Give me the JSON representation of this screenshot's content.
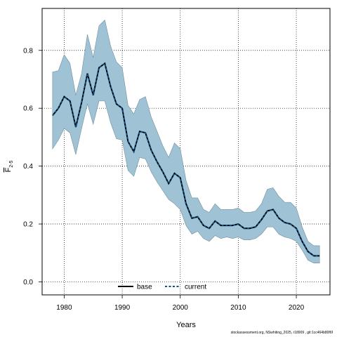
{
  "chart_data": {
    "type": "line",
    "xlabel": "Years",
    "ylabel": "F",
    "ylabel_subscript": "2-5",
    "xlim": [
      1976.2,
      2025.8
    ],
    "ylim": [
      -0.045,
      0.945
    ],
    "x_ticks": [
      1980,
      1990,
      2000,
      2010,
      2020
    ],
    "x_tick_labels": [
      "1980",
      "1990",
      "2000",
      "2010",
      "2020"
    ],
    "y_ticks": [
      0.0,
      0.2,
      0.4,
      0.6,
      0.8
    ],
    "y_tick_labels": [
      "0.0",
      "0.2",
      "0.4",
      "0.6",
      "0.8"
    ],
    "grid": true,
    "legend_position": "bottom",
    "x": [
      1978,
      1979,
      1980,
      1981,
      1982,
      1983,
      1984,
      1985,
      1986,
      1987,
      1988,
      1989,
      1990,
      1991,
      1992,
      1993,
      1994,
      1995,
      1996,
      1997,
      1998,
      1999,
      2000,
      2001,
      2002,
      2003,
      2004,
      2005,
      2006,
      2007,
      2008,
      2009,
      2010,
      2011,
      2012,
      2013,
      2014,
      2015,
      2016,
      2017,
      2018,
      2019,
      2020,
      2021,
      2022,
      2023,
      2024
    ],
    "band": {
      "upper": [
        0.725,
        0.73,
        0.785,
        0.755,
        0.645,
        0.72,
        0.855,
        0.775,
        0.885,
        0.905,
        0.815,
        0.76,
        0.74,
        0.61,
        0.58,
        0.63,
        0.64,
        0.57,
        0.52,
        0.47,
        0.43,
        0.48,
        0.46,
        0.35,
        0.29,
        0.29,
        0.25,
        0.24,
        0.27,
        0.25,
        0.25,
        0.25,
        0.255,
        0.24,
        0.24,
        0.245,
        0.27,
        0.32,
        0.325,
        0.295,
        0.275,
        0.275,
        0.255,
        0.19,
        0.14,
        0.125,
        0.125
      ],
      "lower": [
        0.46,
        0.49,
        0.53,
        0.515,
        0.44,
        0.53,
        0.615,
        0.545,
        0.625,
        0.625,
        0.55,
        0.495,
        0.49,
        0.385,
        0.365,
        0.43,
        0.425,
        0.38,
        0.345,
        0.315,
        0.285,
        0.27,
        0.25,
        0.195,
        0.165,
        0.175,
        0.15,
        0.14,
        0.16,
        0.15,
        0.155,
        0.15,
        0.155,
        0.145,
        0.145,
        0.15,
        0.165,
        0.19,
        0.19,
        0.165,
        0.155,
        0.15,
        0.14,
        0.11,
        0.075,
        0.065,
        0.065
      ],
      "color": "#9fc3d5",
      "edge_color": "#6f8f9f"
    },
    "series": [
      {
        "name": "base",
        "color": "#000000",
        "style": "solid",
        "values": [
          0.575,
          0.6,
          0.64,
          0.625,
          0.535,
          0.62,
          0.72,
          0.645,
          0.74,
          0.755,
          0.675,
          0.615,
          0.6,
          0.485,
          0.45,
          0.52,
          0.515,
          0.455,
          0.415,
          0.38,
          0.34,
          0.375,
          0.36,
          0.27,
          0.22,
          0.225,
          0.195,
          0.185,
          0.21,
          0.195,
          0.195,
          0.195,
          0.2,
          0.185,
          0.185,
          0.19,
          0.215,
          0.245,
          0.25,
          0.22,
          0.205,
          0.2,
          0.185,
          0.14,
          0.105,
          0.09,
          0.09
        ]
      },
      {
        "name": "current",
        "color": "#0f4f86",
        "style": "dashed",
        "values": [
          0.575,
          0.6,
          0.64,
          0.625,
          0.535,
          0.62,
          0.72,
          0.645,
          0.74,
          0.755,
          0.675,
          0.615,
          0.6,
          0.485,
          0.45,
          0.52,
          0.515,
          0.455,
          0.415,
          0.38,
          0.34,
          0.375,
          0.36,
          0.27,
          0.22,
          0.225,
          0.195,
          0.185,
          0.21,
          0.195,
          0.195,
          0.195,
          0.2,
          0.185,
          0.185,
          0.19,
          0.215,
          0.245,
          0.25,
          0.22,
          0.205,
          0.2,
          0.185,
          0.14,
          0.105,
          0.09,
          0.09
        ]
      }
    ]
  },
  "footer_text": "stockassessment.org, NSwhiting_2025, r18909 , git:1cc464b80f6f"
}
